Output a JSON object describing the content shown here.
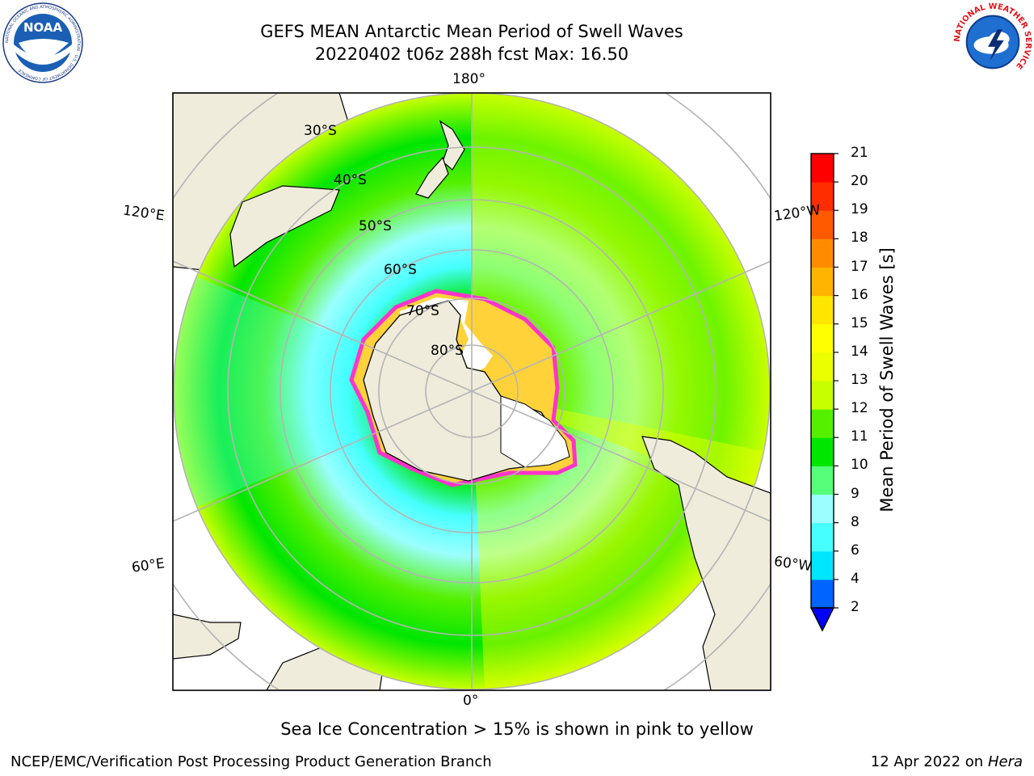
{
  "header": {
    "title_line1": "GEFS MEAN Antarctic Mean Period of Swell Waves",
    "title_line2": "20220402 t06z 288h fcst   Max: 16.50"
  },
  "logos": {
    "noaa_text": "NOAA",
    "noaa_ring_text": "NATIONAL OCEANIC AND ATMOSPHERIC ADMINISTRATION · U.S. DEPARTMENT OF COMMERCE",
    "nws_ring_text": "NATIONAL WEATHER SERVICE"
  },
  "map": {
    "projection": "south polar stereographic",
    "longitude_labels": {
      "top": "180°",
      "bottom": "0°",
      "left_upper": "120°E",
      "left_lower": "60°E",
      "right_upper": "120°W",
      "right_lower": "60°W"
    },
    "latitude_labels": [
      "30°S",
      "40°S",
      "50°S",
      "60°S",
      "70°S",
      "80°S"
    ],
    "colors": {
      "land": "#efecdc",
      "ice_edge": "#ff33cc",
      "ice_inner": "#ffd23a",
      "grid": "#b4b4b4"
    }
  },
  "colorbar": {
    "label": "Mean Period of Swell Waves [s]",
    "ticks": [
      "2",
      "4",
      "6",
      "8",
      "9",
      "10",
      "11",
      "12",
      "13",
      "14",
      "15",
      "16",
      "17",
      "18",
      "19",
      "20",
      "21"
    ],
    "colors": [
      "#0064ff",
      "#00e6ff",
      "#46ffff",
      "#9bffff",
      "#55ff7a",
      "#00e600",
      "#55f000",
      "#c8ff00",
      "#ebff00",
      "#ffff00",
      "#ffe600",
      "#ffb400",
      "#ff8c00",
      "#ff5a00",
      "#ff2d00",
      "#ff0000"
    ],
    "extend_color": "#0000ff"
  },
  "footer": {
    "note": "Sea Ice Concentration > 15% is shown in pink to yellow",
    "credit_left": "NCEP/EMC/Verification Post Processing Product Generation Branch",
    "credit_date": "12 Apr 2022 on ",
    "credit_machine": "Hera"
  }
}
